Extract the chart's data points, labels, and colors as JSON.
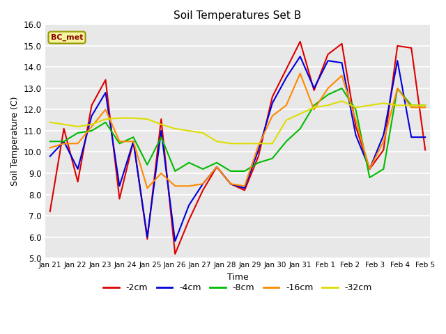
{
  "title": "Soil Temperatures Set B",
  "xlabel": "Time",
  "ylabel": "Soil Temperature (C)",
  "ylim": [
    5.0,
    16.0
  ],
  "yticks": [
    5.0,
    6.0,
    7.0,
    8.0,
    9.0,
    10.0,
    11.0,
    12.0,
    13.0,
    14.0,
    15.0,
    16.0
  ],
  "x_labels": [
    "Jan 21",
    "Jan 22",
    "Jan 23",
    "Jan 24",
    "Jan 25",
    "Jan 26",
    "Jan 27",
    "Jan 28",
    "Jan 29",
    "Jan 30",
    "Jan 31",
    "Feb 1",
    "Feb 2",
    "Feb 3",
    "Feb 4",
    "Feb 5"
  ],
  "fig_bg": "#ffffff",
  "plot_bg": "#e8e8e8",
  "grid_color": "#ffffff",
  "legend_label": "BC_met",
  "series": {
    "-2cm": {
      "color": "#dd0000",
      "lw": 1.5,
      "data": [
        7.2,
        11.1,
        8.6,
        12.2,
        13.4,
        7.8,
        10.5,
        5.9,
        11.55,
        5.2,
        6.8,
        8.2,
        9.3,
        8.5,
        8.2,
        9.8,
        12.6,
        13.9,
        15.2,
        12.9,
        14.6,
        15.1,
        11.2,
        9.2,
        10.1,
        15.0,
        14.9,
        10.1
      ]
    },
    "-4cm": {
      "color": "#0000dd",
      "lw": 1.5,
      "data": [
        9.8,
        10.5,
        9.2,
        11.7,
        12.8,
        8.4,
        10.5,
        6.0,
        11.0,
        5.8,
        7.5,
        8.5,
        9.3,
        8.5,
        8.3,
        10.1,
        12.3,
        13.5,
        14.5,
        13.0,
        14.3,
        14.2,
        10.8,
        9.2,
        10.8,
        14.3,
        10.7,
        10.7
      ]
    },
    "-8cm": {
      "color": "#00bb00",
      "lw": 1.5,
      "data": [
        10.5,
        10.5,
        10.9,
        11.0,
        11.4,
        10.4,
        10.7,
        9.4,
        10.7,
        9.1,
        9.5,
        9.2,
        9.5,
        9.1,
        9.1,
        9.5,
        9.7,
        10.5,
        11.1,
        12.2,
        12.7,
        13.0,
        12.0,
        8.8,
        9.2,
        13.0,
        12.2,
        12.2
      ]
    },
    "-16cm": {
      "color": "#ff8800",
      "lw": 1.5,
      "data": [
        10.2,
        10.4,
        10.4,
        11.2,
        12.0,
        10.5,
        10.5,
        8.3,
        9.0,
        8.4,
        8.4,
        8.5,
        9.3,
        8.5,
        8.4,
        10.3,
        11.7,
        12.2,
        13.7,
        12.0,
        13.0,
        13.6,
        11.5,
        9.2,
        10.5,
        13.0,
        12.1,
        12.1
      ]
    },
    "-32cm": {
      "color": "#dddd00",
      "lw": 1.5,
      "data": [
        11.4,
        11.3,
        11.2,
        11.3,
        11.55,
        11.6,
        11.6,
        11.55,
        11.3,
        11.1,
        11.0,
        10.9,
        10.5,
        10.4,
        10.4,
        10.4,
        10.4,
        11.5,
        11.8,
        12.1,
        12.2,
        12.4,
        12.1,
        12.2,
        12.3,
        12.2,
        12.2,
        12.2
      ]
    }
  }
}
